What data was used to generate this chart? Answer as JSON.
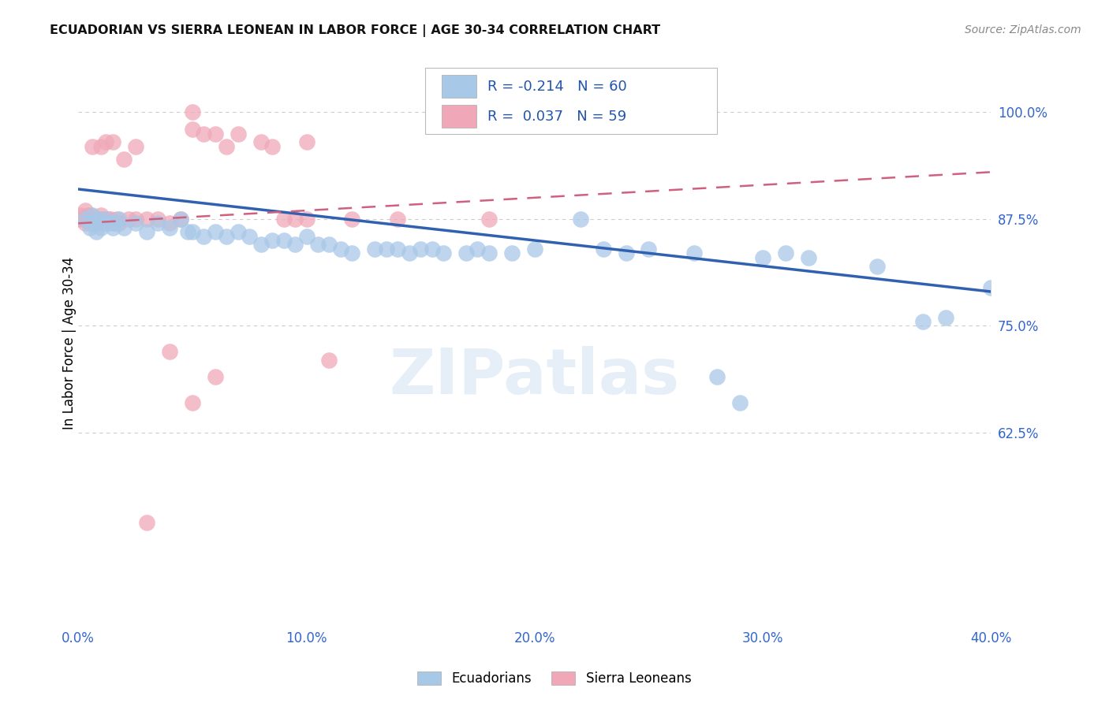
{
  "title": "ECUADORIAN VS SIERRA LEONEAN IN LABOR FORCE | AGE 30-34 CORRELATION CHART",
  "source": "Source: ZipAtlas.com",
  "xlabel_ticks": [
    "0.0%",
    "10.0%",
    "20.0%",
    "30.0%",
    "40.0%"
  ],
  "xlabel_tick_vals": [
    0.0,
    0.1,
    0.2,
    0.3,
    0.4
  ],
  "ylabel": "In Labor Force | Age 30-34",
  "ylabel_ticks": [
    "62.5%",
    "75.0%",
    "87.5%",
    "100.0%"
  ],
  "ylabel_tick_vals": [
    0.625,
    0.75,
    0.875,
    1.0
  ],
  "xlim": [
    0.0,
    0.4
  ],
  "ylim": [
    0.4,
    1.06
  ],
  "R_blue": -0.214,
  "N_blue": 60,
  "R_pink": 0.037,
  "N_pink": 59,
  "blue_color": "#A8C8E8",
  "pink_color": "#F0A8B8",
  "blue_line_color": "#3060B0",
  "pink_line_color": "#D06080",
  "watermark": "ZIPatlas",
  "blue_scatter": [
    [
      0.003,
      0.875
    ],
    [
      0.005,
      0.865
    ],
    [
      0.006,
      0.88
    ],
    [
      0.007,
      0.87
    ],
    [
      0.008,
      0.86
    ],
    [
      0.009,
      0.875
    ],
    [
      0.01,
      0.865
    ],
    [
      0.012,
      0.875
    ],
    [
      0.013,
      0.87
    ],
    [
      0.015,
      0.865
    ],
    [
      0.016,
      0.87
    ],
    [
      0.018,
      0.875
    ],
    [
      0.02,
      0.865
    ],
    [
      0.025,
      0.87
    ],
    [
      0.03,
      0.86
    ],
    [
      0.035,
      0.87
    ],
    [
      0.04,
      0.865
    ],
    [
      0.045,
      0.875
    ],
    [
      0.048,
      0.86
    ],
    [
      0.05,
      0.86
    ],
    [
      0.055,
      0.855
    ],
    [
      0.06,
      0.86
    ],
    [
      0.065,
      0.855
    ],
    [
      0.07,
      0.86
    ],
    [
      0.075,
      0.855
    ],
    [
      0.08,
      0.845
    ],
    [
      0.085,
      0.85
    ],
    [
      0.09,
      0.85
    ],
    [
      0.095,
      0.845
    ],
    [
      0.1,
      0.855
    ],
    [
      0.105,
      0.845
    ],
    [
      0.11,
      0.845
    ],
    [
      0.115,
      0.84
    ],
    [
      0.12,
      0.835
    ],
    [
      0.13,
      0.84
    ],
    [
      0.135,
      0.84
    ],
    [
      0.14,
      0.84
    ],
    [
      0.145,
      0.835
    ],
    [
      0.15,
      0.84
    ],
    [
      0.155,
      0.84
    ],
    [
      0.16,
      0.835
    ],
    [
      0.17,
      0.835
    ],
    [
      0.175,
      0.84
    ],
    [
      0.18,
      0.835
    ],
    [
      0.19,
      0.835
    ],
    [
      0.2,
      0.84
    ],
    [
      0.22,
      0.875
    ],
    [
      0.23,
      0.84
    ],
    [
      0.24,
      0.835
    ],
    [
      0.25,
      0.84
    ],
    [
      0.27,
      0.835
    ],
    [
      0.28,
      0.69
    ],
    [
      0.29,
      0.66
    ],
    [
      0.3,
      0.83
    ],
    [
      0.31,
      0.835
    ],
    [
      0.32,
      0.83
    ],
    [
      0.35,
      0.82
    ],
    [
      0.37,
      0.755
    ],
    [
      0.38,
      0.76
    ],
    [
      0.4,
      0.795
    ]
  ],
  "pink_scatter": [
    [
      0.0,
      0.875
    ],
    [
      0.001,
      0.88
    ],
    [
      0.002,
      0.875
    ],
    [
      0.003,
      0.87
    ],
    [
      0.003,
      0.885
    ],
    [
      0.004,
      0.88
    ],
    [
      0.004,
      0.875
    ],
    [
      0.005,
      0.88
    ],
    [
      0.005,
      0.875
    ],
    [
      0.005,
      0.87
    ],
    [
      0.006,
      0.875
    ],
    [
      0.006,
      0.87
    ],
    [
      0.007,
      0.875
    ],
    [
      0.007,
      0.87
    ],
    [
      0.008,
      0.875
    ],
    [
      0.008,
      0.87
    ],
    [
      0.009,
      0.875
    ],
    [
      0.009,
      0.87
    ],
    [
      0.01,
      0.88
    ],
    [
      0.01,
      0.875
    ],
    [
      0.01,
      0.96
    ],
    [
      0.011,
      0.875
    ],
    [
      0.012,
      0.87
    ],
    [
      0.012,
      0.965
    ],
    [
      0.013,
      0.875
    ],
    [
      0.014,
      0.875
    ],
    [
      0.015,
      0.965
    ],
    [
      0.016,
      0.87
    ],
    [
      0.017,
      0.875
    ],
    [
      0.018,
      0.87
    ],
    [
      0.02,
      0.945
    ],
    [
      0.022,
      0.875
    ],
    [
      0.025,
      0.875
    ],
    [
      0.025,
      0.96
    ],
    [
      0.03,
      0.875
    ],
    [
      0.03,
      0.52
    ],
    [
      0.035,
      0.875
    ],
    [
      0.04,
      0.87
    ],
    [
      0.04,
      0.72
    ],
    [
      0.045,
      0.875
    ],
    [
      0.05,
      0.98
    ],
    [
      0.055,
      0.975
    ],
    [
      0.06,
      0.975
    ],
    [
      0.06,
      0.69
    ],
    [
      0.065,
      0.96
    ],
    [
      0.07,
      0.975
    ],
    [
      0.08,
      0.965
    ],
    [
      0.085,
      0.96
    ],
    [
      0.09,
      0.875
    ],
    [
      0.095,
      0.875
    ],
    [
      0.1,
      0.965
    ],
    [
      0.1,
      0.875
    ],
    [
      0.11,
      0.71
    ],
    [
      0.12,
      0.875
    ],
    [
      0.14,
      0.875
    ],
    [
      0.05,
      0.66
    ],
    [
      0.18,
      0.875
    ],
    [
      0.006,
      0.96
    ],
    [
      0.05,
      1.0
    ]
  ]
}
